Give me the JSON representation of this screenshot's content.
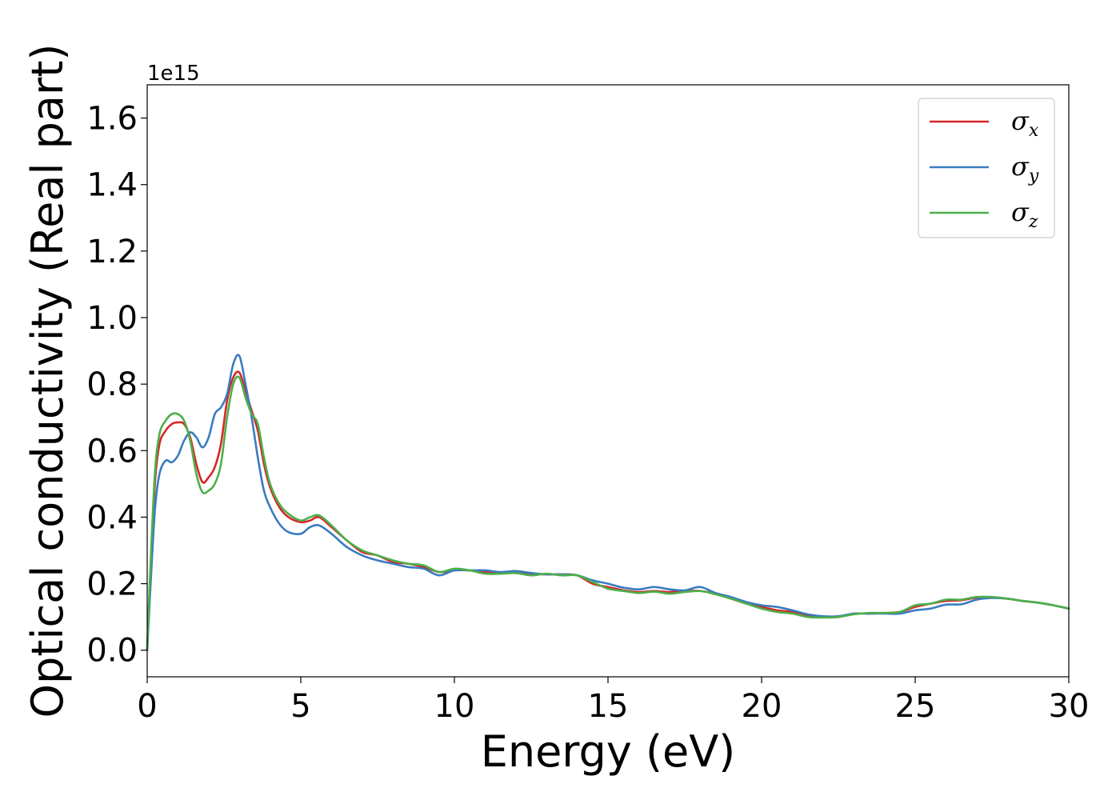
{
  "chart_data": {
    "type": "line",
    "title": "",
    "xlabel": "Energy (eV)",
    "ylabel": "Optical conductivity (Real part)",
    "y_offset_label": "1e15",
    "xlim": [
      0,
      30
    ],
    "ylim": [
      -0.08,
      1.7
    ],
    "xticks": [
      0,
      5,
      10,
      15,
      20,
      25,
      30
    ],
    "xtick_labels": [
      "0",
      "5",
      "10",
      "15",
      "20",
      "25",
      "30"
    ],
    "yticks": [
      0.0,
      0.2,
      0.4,
      0.6,
      0.8,
      1.0,
      1.2,
      1.4,
      1.6
    ],
    "ytick_labels": [
      "0.0",
      "0.2",
      "0.4",
      "0.6",
      "0.8",
      "1.0",
      "1.2",
      "1.4",
      "1.6"
    ],
    "grid": false,
    "legend_position": "top-right",
    "series": [
      {
        "name": "σx",
        "label_base": "σ",
        "label_sub": "x",
        "color": "#d62728",
        "x": [
          0,
          0.1,
          0.25,
          0.4,
          0.6,
          0.8,
          1.0,
          1.2,
          1.4,
          1.6,
          1.8,
          2.0,
          2.2,
          2.4,
          2.6,
          2.8,
          3.0,
          3.2,
          3.4,
          3.6,
          3.8,
          4.0,
          4.3,
          4.6,
          5.0,
          5.3,
          5.6,
          6.0,
          6.5,
          7.0,
          7.5,
          8.0,
          8.5,
          9.0,
          9.5,
          10.0,
          10.5,
          11.0,
          11.5,
          12.0,
          12.5,
          13.0,
          13.5,
          14.0,
          14.5,
          15.0,
          15.5,
          16.0,
          16.5,
          17.0,
          17.5,
          18.0,
          18.5,
          19.0,
          19.5,
          20.0,
          20.5,
          21.0,
          21.5,
          22.0,
          22.5,
          23.0,
          23.5,
          24.0,
          24.5,
          25.0,
          25.5,
          26.0,
          26.5,
          27.0,
          27.5,
          28.0,
          28.5,
          29.0,
          29.5,
          30.0
        ],
        "y": [
          0.0,
          0.22,
          0.5,
          0.62,
          0.66,
          0.68,
          0.685,
          0.68,
          0.64,
          0.56,
          0.505,
          0.52,
          0.55,
          0.62,
          0.75,
          0.82,
          0.835,
          0.78,
          0.72,
          0.66,
          0.56,
          0.49,
          0.43,
          0.4,
          0.385,
          0.39,
          0.4,
          0.37,
          0.33,
          0.295,
          0.285,
          0.265,
          0.26,
          0.25,
          0.235,
          0.24,
          0.24,
          0.235,
          0.232,
          0.232,
          0.23,
          0.228,
          0.228,
          0.225,
          0.2,
          0.19,
          0.18,
          0.175,
          0.178,
          0.175,
          0.178,
          0.178,
          0.17,
          0.155,
          0.14,
          0.13,
          0.12,
          0.115,
          0.105,
          0.1,
          0.1,
          0.11,
          0.11,
          0.112,
          0.115,
          0.13,
          0.14,
          0.148,
          0.15,
          0.158,
          0.158,
          0.155,
          0.148,
          0.143,
          0.135,
          0.125
        ]
      },
      {
        "name": "σy",
        "label_base": "σ",
        "label_sub": "y",
        "color": "#3a7bbf",
        "x": [
          0,
          0.1,
          0.25,
          0.4,
          0.6,
          0.8,
          1.0,
          1.2,
          1.4,
          1.6,
          1.8,
          2.0,
          2.2,
          2.4,
          2.6,
          2.8,
          3.0,
          3.2,
          3.4,
          3.6,
          3.8,
          4.0,
          4.3,
          4.6,
          5.0,
          5.3,
          5.6,
          6.0,
          6.5,
          7.0,
          7.5,
          8.0,
          8.5,
          9.0,
          9.5,
          10.0,
          10.5,
          11.0,
          11.5,
          12.0,
          12.5,
          13.0,
          13.5,
          14.0,
          14.5,
          15.0,
          15.5,
          16.0,
          16.5,
          17.0,
          17.5,
          18.0,
          18.5,
          19.0,
          19.5,
          20.0,
          20.5,
          21.0,
          21.5,
          22.0,
          22.5,
          23.0,
          23.5,
          24.0,
          24.5,
          25.0,
          25.5,
          26.0,
          26.5,
          27.0,
          27.5,
          28.0,
          28.5,
          29.0,
          29.5,
          30.0
        ],
        "y": [
          0.0,
          0.18,
          0.42,
          0.53,
          0.57,
          0.565,
          0.585,
          0.63,
          0.655,
          0.64,
          0.61,
          0.64,
          0.71,
          0.73,
          0.77,
          0.86,
          0.885,
          0.8,
          0.7,
          0.58,
          0.48,
          0.43,
          0.38,
          0.355,
          0.35,
          0.37,
          0.375,
          0.35,
          0.31,
          0.285,
          0.27,
          0.26,
          0.25,
          0.245,
          0.225,
          0.24,
          0.24,
          0.24,
          0.235,
          0.238,
          0.232,
          0.228,
          0.228,
          0.225,
          0.21,
          0.2,
          0.188,
          0.183,
          0.19,
          0.183,
          0.18,
          0.19,
          0.172,
          0.16,
          0.145,
          0.135,
          0.13,
          0.12,
          0.108,
          0.102,
          0.102,
          0.11,
          0.11,
          0.11,
          0.11,
          0.12,
          0.125,
          0.137,
          0.138,
          0.152,
          0.157,
          0.155,
          0.148,
          0.143,
          0.135,
          0.125
        ]
      },
      {
        "name": "σz",
        "label_base": "σ",
        "label_sub": "z",
        "color": "#4daf4a",
        "x": [
          0,
          0.1,
          0.25,
          0.4,
          0.6,
          0.8,
          1.0,
          1.2,
          1.4,
          1.6,
          1.8,
          2.0,
          2.2,
          2.4,
          2.6,
          2.8,
          3.0,
          3.2,
          3.4,
          3.6,
          3.8,
          4.0,
          4.3,
          4.6,
          5.0,
          5.3,
          5.6,
          6.0,
          6.5,
          7.0,
          7.5,
          8.0,
          8.5,
          9.0,
          9.5,
          10.0,
          10.5,
          11.0,
          11.5,
          12.0,
          12.5,
          13.0,
          13.5,
          14.0,
          14.5,
          15.0,
          15.5,
          16.0,
          16.5,
          17.0,
          17.5,
          18.0,
          18.5,
          19.0,
          19.5,
          20.0,
          20.5,
          21.0,
          21.5,
          22.0,
          22.5,
          23.0,
          23.5,
          24.0,
          24.5,
          25.0,
          25.5,
          26.0,
          26.5,
          27.0,
          27.5,
          28.0,
          28.5,
          29.0,
          29.5,
          30.0
        ],
        "y": [
          0.0,
          0.24,
          0.53,
          0.65,
          0.69,
          0.71,
          0.71,
          0.69,
          0.63,
          0.53,
          0.475,
          0.48,
          0.5,
          0.56,
          0.7,
          0.8,
          0.82,
          0.76,
          0.71,
          0.68,
          0.58,
          0.5,
          0.44,
          0.41,
          0.39,
          0.4,
          0.405,
          0.375,
          0.33,
          0.3,
          0.285,
          0.27,
          0.26,
          0.255,
          0.235,
          0.245,
          0.24,
          0.23,
          0.23,
          0.232,
          0.225,
          0.23,
          0.225,
          0.225,
          0.205,
          0.185,
          0.178,
          0.172,
          0.176,
          0.17,
          0.175,
          0.178,
          0.168,
          0.155,
          0.14,
          0.125,
          0.115,
          0.11,
          0.1,
          0.098,
          0.1,
          0.108,
          0.112,
          0.112,
          0.115,
          0.135,
          0.14,
          0.152,
          0.152,
          0.16,
          0.16,
          0.155,
          0.148,
          0.143,
          0.135,
          0.125
        ]
      }
    ]
  }
}
